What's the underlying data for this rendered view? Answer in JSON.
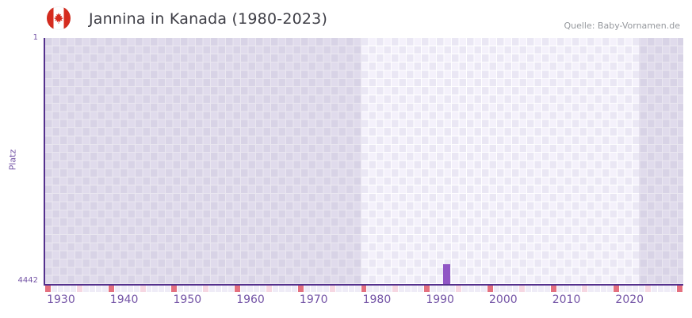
{
  "header": {
    "title": "Jannina in Kanada (1980-2023)",
    "source": "Quelle: Baby-Vornamen.de",
    "flag_icon": "canada-flag-icon"
  },
  "chart_data": {
    "type": "bar",
    "title": "Jannina in Kanada (1980-2023)",
    "ylabel": "Platz",
    "y_axis": {
      "top_label": "1",
      "bottom_label": "4442",
      "min": 1,
      "max": 4442,
      "inverted": true
    },
    "x_axis": {
      "start_year": 1928,
      "end_year": 2028,
      "tick_years": [
        1930,
        1940,
        1950,
        1960,
        1970,
        1980,
        1990,
        2000,
        2010,
        2020
      ]
    },
    "bars": [
      {
        "year": 1991,
        "rank": 4085
      }
    ],
    "data_range": {
      "start": 1978,
      "end": 2022
    },
    "axis_year_markers": {
      "dark_years": [
        1928,
        1938,
        1948,
        1958,
        1968,
        1978,
        1988,
        1998,
        2008,
        2018,
        2028
      ],
      "light_years": [
        1933,
        1943,
        1953,
        1963,
        1973,
        1983,
        1993,
        2003,
        2013,
        2023
      ]
    },
    "grid": true,
    "legend": "none",
    "colors": {
      "bar": "#9055c5",
      "axis": "#54308d",
      "tick_label": "#7454a6",
      "title": "#3e3e46",
      "source": "#95989d",
      "marker_dark": "#e4707f",
      "marker_light": "#f6d7e2",
      "marker_neutral": "#efecf7",
      "checker_a": "#f4f1fb",
      "checker_b": "#eae7f4",
      "band_overlay": "rgba(122,108,160,0.16)",
      "flag_red": "#d52b1e"
    }
  }
}
